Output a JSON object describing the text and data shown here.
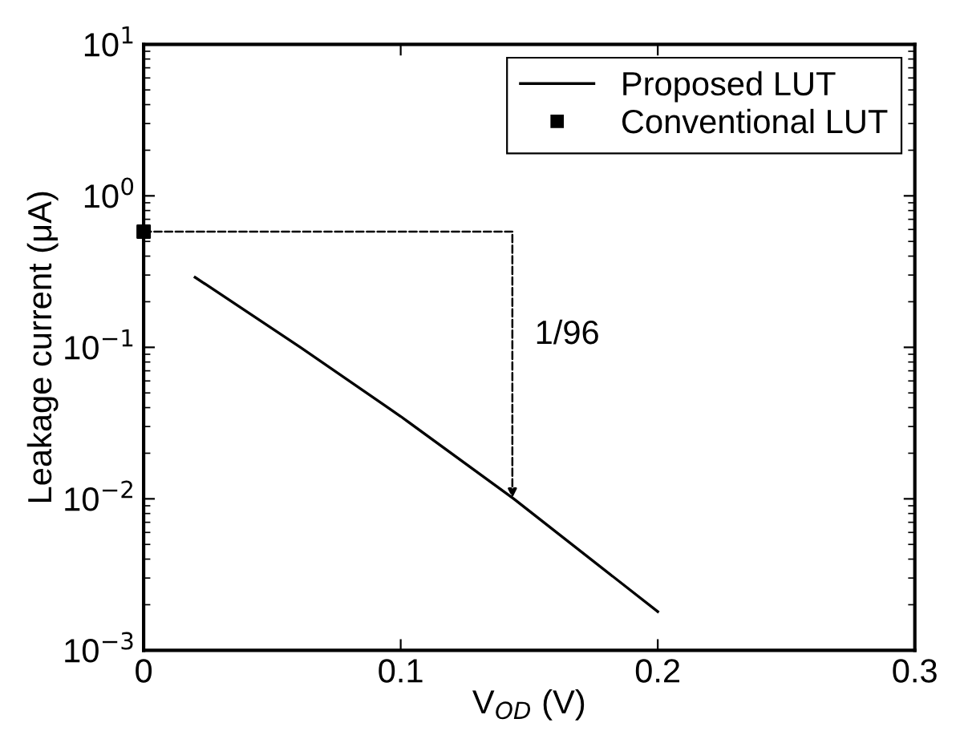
{
  "chart_data": {
    "type": "line",
    "xlabel": "V$_{OD}$ (V)",
    "ylabel": "Leakage current (μA)",
    "log": "y",
    "xlim": [
      0,
      0.3
    ],
    "xticks": [
      0,
      0.1,
      0.2,
      0.3
    ],
    "ylim": [
      0.001,
      10
    ],
    "yticks": [
      {
        "value": 0.001,
        "label": "10$^{−3}$"
      },
      {
        "value": 0.01,
        "label": "10$^{−2}$"
      },
      {
        "value": 0.1,
        "label": "10$^{−1}$"
      },
      {
        "value": 1,
        "label": "10$^{0}$"
      },
      {
        "value": 10,
        "label": "10$^{1}$"
      }
    ],
    "grid": false,
    "legend": "top right",
    "series": [
      {
        "name": "Proposed LUT",
        "color": "#000000",
        "line_style": "solid",
        "marker": "none",
        "x": [
          0.02,
          0.061,
          0.1,
          0.144,
          0.2
        ],
        "values": [
          0.29,
          0.1,
          0.035,
          0.01,
          0.0018
        ]
      },
      {
        "name": "Conventional LUT",
        "type": "scatter",
        "color": "#000000",
        "marker": "square",
        "x": [
          0
        ],
        "values": [
          0.58
        ]
      }
    ],
    "annotations": [
      "1/96"
    ]
  }
}
